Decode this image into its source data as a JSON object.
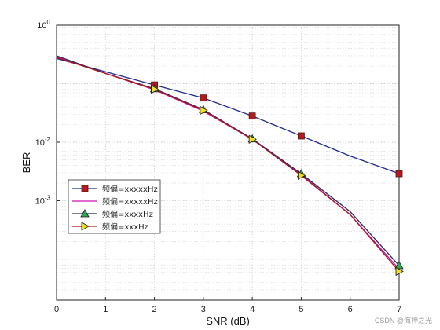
{
  "chart_data": {
    "type": "line",
    "xlabel": "SNR (dB)",
    "ylabel": "BER",
    "xlim": [
      0,
      7
    ],
    "ylim": [
      2e-05,
      1
    ],
    "yscale": "log",
    "grid": true,
    "legend_placement": "bottom-left",
    "x_ticks": [
      "0",
      "1",
      "2",
      "3",
      "4",
      "5",
      "6",
      "7"
    ],
    "y_ticks": [
      {
        "base": "10",
        "exp": "0",
        "value": 1
      },
      {
        "base": "10",
        "exp": "-2",
        "value": 0.01
      },
      {
        "base": "10",
        "exp": "-3",
        "value": 0.001
      }
    ],
    "series": [
      {
        "name": "频偏=xxxxxHz",
        "color": "#1f2a8f",
        "marker": "square",
        "marker_fill": "#b01c1c",
        "x": [
          0,
          1,
          2,
          3,
          4,
          5,
          6,
          7
        ],
        "y": [
          0.27,
          0.16,
          0.095,
          0.057,
          0.028,
          0.0128,
          0.0058,
          0.0029
        ]
      },
      {
        "name": "频偏=xxxxxHz",
        "color": "#d010b0",
        "marker": "none",
        "marker_fill": "",
        "x": [
          0,
          1,
          2,
          3,
          4,
          5,
          6,
          7
        ],
        "y": [
          0.29,
          0.15,
          0.079,
          0.034,
          0.0112,
          0.0028,
          0.00058,
          6.8e-05
        ]
      },
      {
        "name": "频偏=xxxxHz",
        "color": "#2a2a5a",
        "marker": "triangle-up",
        "marker_fill": "#2fa84f",
        "x": [
          0,
          1,
          2,
          3,
          4,
          5,
          6,
          7
        ],
        "y": [
          0.3,
          0.15,
          0.082,
          0.036,
          0.0114,
          0.0029,
          0.00065,
          7.8e-05
        ]
      },
      {
        "name": "频偏=xxxHz",
        "color": "#b0141e",
        "marker": "triangle-right",
        "marker_fill": "#f0e020",
        "x": [
          0,
          1,
          2,
          3,
          4,
          5,
          6,
          7
        ],
        "y": [
          0.28,
          0.15,
          0.08,
          0.035,
          0.0112,
          0.0027,
          0.00058,
          6.2e-05
        ]
      }
    ]
  },
  "watermark": "CSDN @海神之光"
}
